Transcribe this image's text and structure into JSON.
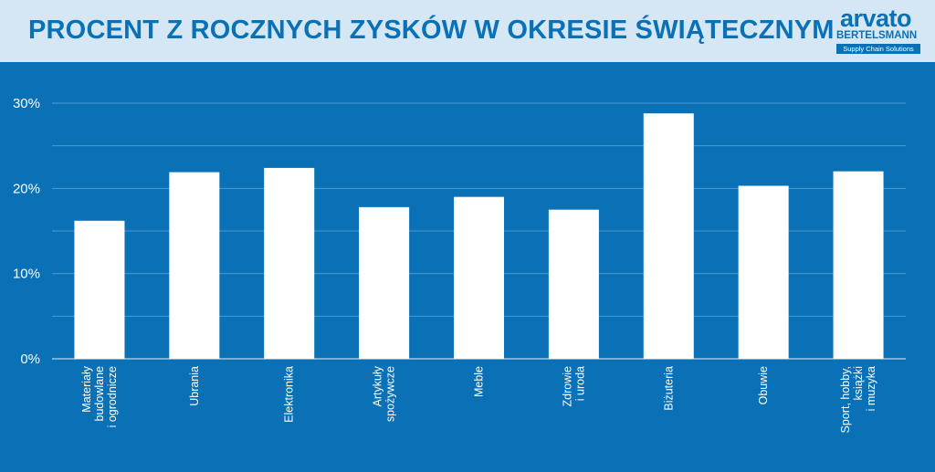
{
  "header": {
    "title": "PROCENT Z ROCZNYCH ZYSKÓW W OKRESIE ŚWIĄTECZNYM",
    "logo": {
      "main": "arvato",
      "sub": "BERTELSMANN",
      "tag": "Supply Chain Solutions"
    }
  },
  "colors": {
    "background": "#0a71b6",
    "header_bg": "#d5e7f4",
    "bar": "#ffffff",
    "grid": "#4a9bd2"
  },
  "chart_data": {
    "type": "bar",
    "title": "PROCENT Z ROCZNYCH ZYSKÓW W OKRESIE ŚWIĄTECZNYM",
    "xlabel": "",
    "ylabel": "",
    "ylim": [
      0,
      30
    ],
    "yticks": [
      {
        "value": 0,
        "label": "0%"
      },
      {
        "value": 10,
        "label": "10%"
      },
      {
        "value": 20,
        "label": "20%"
      },
      {
        "value": 30,
        "label": "30%"
      }
    ],
    "grid": true,
    "categories": [
      [
        "Materiały",
        "budowlane",
        "i ogrodnicze"
      ],
      [
        "Ubrania"
      ],
      [
        "Elektronika"
      ],
      [
        "Artykuły",
        "spożywcze"
      ],
      [
        "Meble"
      ],
      [
        "Zdrowie",
        "i uroda"
      ],
      [
        "Biżuteria"
      ],
      [
        "Obuwie"
      ],
      [
        "Sport, hobby,",
        "książki",
        "i muzyka"
      ]
    ],
    "values": [
      16.2,
      21.9,
      22.4,
      17.8,
      19.0,
      17.5,
      28.8,
      20.3,
      22.0
    ]
  }
}
